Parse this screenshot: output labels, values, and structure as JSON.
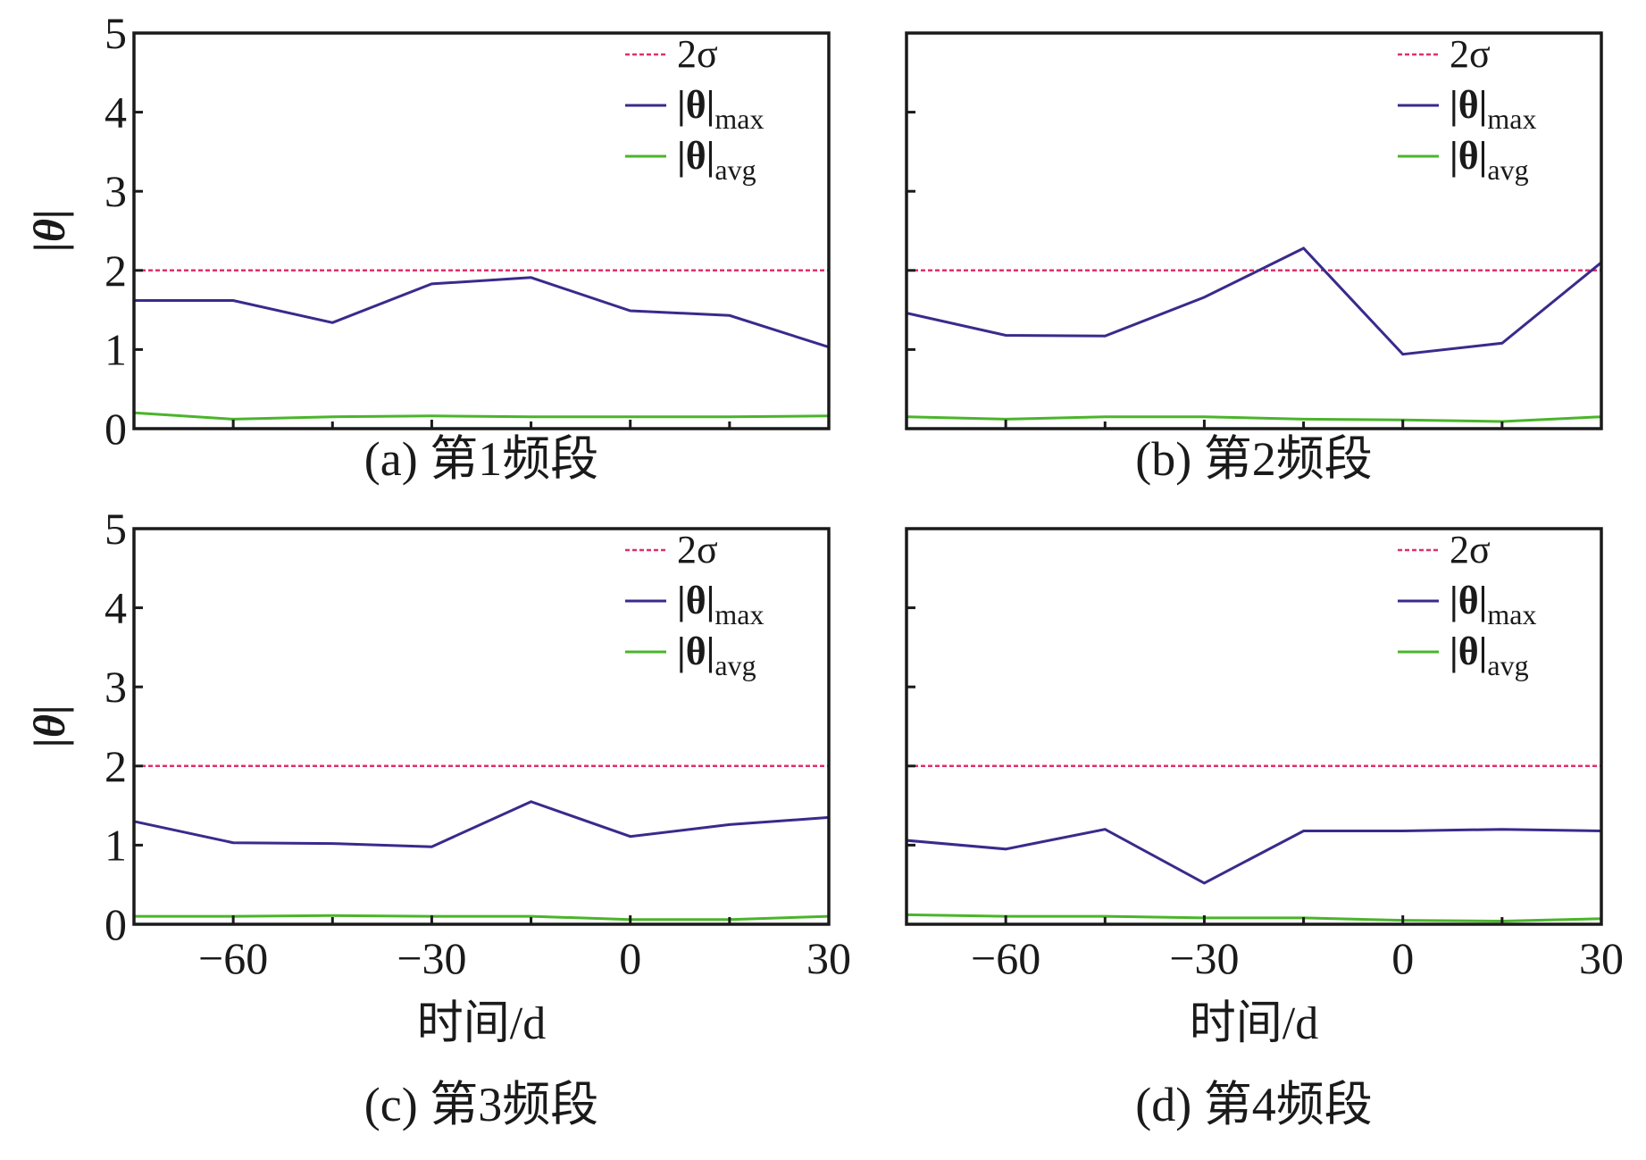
{
  "figure": {
    "xlabel": "时间/d",
    "ylabel": "|θ|",
    "legend": {
      "sigma": "2σ",
      "max_label": "|θ|",
      "max_sub": "max",
      "avg_label": "|θ|",
      "avg_sub": "avg"
    },
    "colors": {
      "sigma": "#e0306a",
      "max": "#3a2a8c",
      "avg": "#4ab52a",
      "frame": "#1a1a1a"
    }
  },
  "chart_data": [
    {
      "type": "line",
      "title": "(a) 第1频段",
      "x": [
        -75,
        -60,
        -45,
        -30,
        -15,
        0,
        15,
        30
      ],
      "xticks": [
        -60,
        -30,
        0,
        30
      ],
      "xtick_labels": [
        "−60",
        "−30",
        "0",
        "30"
      ],
      "yticks": [
        0,
        1,
        2,
        3,
        4,
        5
      ],
      "xlim": [
        -75,
        30
      ],
      "ylim": [
        0,
        5
      ],
      "series": [
        {
          "name": "2σ",
          "key": "sigma",
          "values": [
            2.0,
            2.0,
            2.0,
            2.0,
            2.0,
            2.0,
            2.0,
            2.0
          ]
        },
        {
          "name": "|θ|max",
          "key": "max",
          "values": [
            1.62,
            1.62,
            1.34,
            1.83,
            1.91,
            1.49,
            1.43,
            1.03
          ]
        },
        {
          "name": "|θ|avg",
          "key": "avg",
          "values": [
            0.2,
            0.12,
            0.15,
            0.16,
            0.15,
            0.15,
            0.15,
            0.16
          ]
        }
      ]
    },
    {
      "type": "line",
      "title": "(b) 第2频段",
      "x": [
        -75,
        -60,
        -45,
        -30,
        -15,
        0,
        15,
        30
      ],
      "xticks": [
        -60,
        -30,
        0,
        30
      ],
      "xtick_labels": [
        "−60",
        "−30",
        "0",
        "30"
      ],
      "yticks": [
        0,
        1,
        2,
        3,
        4,
        5
      ],
      "xlim": [
        -75,
        30
      ],
      "ylim": [
        0,
        5
      ],
      "series": [
        {
          "name": "2σ",
          "key": "sigma",
          "values": [
            2.0,
            2.0,
            2.0,
            2.0,
            2.0,
            2.0,
            2.0,
            2.0
          ]
        },
        {
          "name": "|θ|max",
          "key": "max",
          "values": [
            1.46,
            1.18,
            1.17,
            1.66,
            2.28,
            0.94,
            1.08,
            2.1
          ]
        },
        {
          "name": "|θ|avg",
          "key": "avg",
          "values": [
            0.15,
            0.12,
            0.15,
            0.15,
            0.12,
            0.11,
            0.09,
            0.15
          ]
        }
      ]
    },
    {
      "type": "line",
      "title": "(c) 第3频段",
      "x": [
        -75,
        -60,
        -45,
        -30,
        -15,
        0,
        15,
        30
      ],
      "xticks": [
        -60,
        -30,
        0,
        30
      ],
      "xtick_labels": [
        "−60",
        "−30",
        "0",
        "30"
      ],
      "yticks": [
        0,
        1,
        2,
        3,
        4,
        5
      ],
      "xlim": [
        -75,
        30
      ],
      "ylim": [
        0,
        5
      ],
      "series": [
        {
          "name": "2σ",
          "key": "sigma",
          "values": [
            2.0,
            2.0,
            2.0,
            2.0,
            2.0,
            2.0,
            2.0,
            2.0
          ]
        },
        {
          "name": "|θ|max",
          "key": "max",
          "values": [
            1.3,
            1.03,
            1.02,
            0.98,
            1.55,
            1.11,
            1.26,
            1.35
          ]
        },
        {
          "name": "|θ|avg",
          "key": "avg",
          "values": [
            0.1,
            0.1,
            0.11,
            0.1,
            0.1,
            0.06,
            0.06,
            0.1
          ]
        }
      ]
    },
    {
      "type": "line",
      "title": "(d) 第4频段",
      "x": [
        -75,
        -60,
        -45,
        -30,
        -15,
        0,
        15,
        30
      ],
      "xticks": [
        -60,
        -30,
        0,
        30
      ],
      "xtick_labels": [
        "−60",
        "−30",
        "0",
        "30"
      ],
      "yticks": [
        0,
        1,
        2,
        3,
        4,
        5
      ],
      "xlim": [
        -75,
        30
      ],
      "ylim": [
        0,
        5
      ],
      "series": [
        {
          "name": "2σ",
          "key": "sigma",
          "values": [
            2.0,
            2.0,
            2.0,
            2.0,
            2.0,
            2.0,
            2.0,
            2.0
          ]
        },
        {
          "name": "|θ|max",
          "key": "max",
          "values": [
            1.06,
            0.95,
            1.2,
            0.52,
            1.18,
            1.18,
            1.2,
            1.18
          ]
        },
        {
          "name": "|θ|avg",
          "key": "avg",
          "values": [
            0.12,
            0.1,
            0.1,
            0.08,
            0.08,
            0.05,
            0.04,
            0.07
          ]
        }
      ]
    }
  ]
}
